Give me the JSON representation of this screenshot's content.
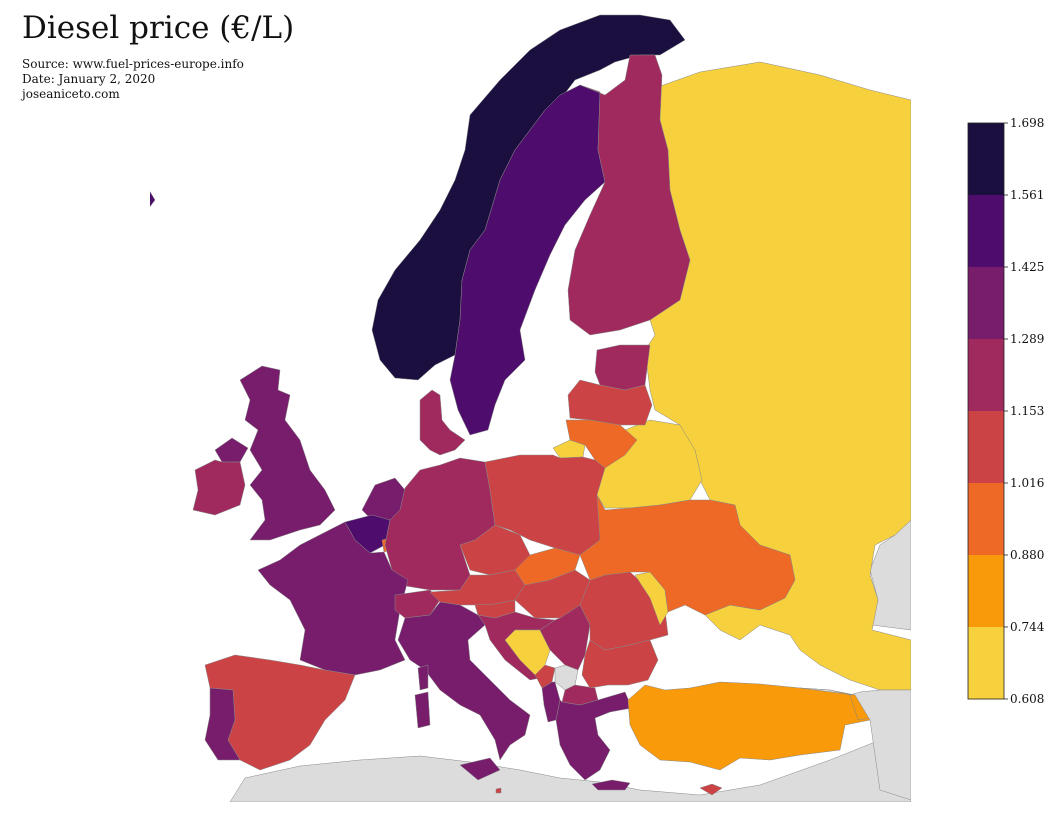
{
  "header": {
    "title": "Diesel price (€/L)",
    "source": "Source: www.fuel-prices-europe.info",
    "date": "Date: January 2, 2020",
    "credit": "joseaniceto.com"
  },
  "legend": {
    "ticks": [
      "1.698",
      "1.561",
      "1.425",
      "1.289",
      "1.153",
      "1.016",
      "0.880",
      "0.744",
      "0.608"
    ],
    "bins": [
      {
        "range": "1.561-1.698",
        "color": "#1b0f3f"
      },
      {
        "range": "1.425-1.561",
        "color": "#4e0d6c"
      },
      {
        "range": "1.289-1.425",
        "color": "#771d6c"
      },
      {
        "range": "1.153-1.289",
        "color": "#a02a5e"
      },
      {
        "range": "1.016-1.153",
        "color": "#cc4346"
      },
      {
        "range": "0.880-1.016",
        "color": "#ed6925"
      },
      {
        "range": "0.744-0.880",
        "color": "#f89a0a"
      },
      {
        "range": "0.608-0.744",
        "color": "#f7d13d"
      }
    ],
    "no_data_color": "#dcdcdc"
  },
  "map": {
    "regions": [
      {
        "name": "Iceland",
        "bin": 1
      },
      {
        "name": "Norway",
        "bin": 0
      },
      {
        "name": "Sweden",
        "bin": 1
      },
      {
        "name": "Finland",
        "bin": 3
      },
      {
        "name": "Russia",
        "bin": 7
      },
      {
        "name": "Estonia",
        "bin": 3
      },
      {
        "name": "Latvia",
        "bin": 4
      },
      {
        "name": "Lithuania",
        "bin": 5
      },
      {
        "name": "Belarus",
        "bin": 7
      },
      {
        "name": "United Kingdom",
        "bin": 2
      },
      {
        "name": "Ireland",
        "bin": 3
      },
      {
        "name": "Denmark",
        "bin": 3
      },
      {
        "name": "Netherlands",
        "bin": 2
      },
      {
        "name": "Belgium",
        "bin": 1
      },
      {
        "name": "Luxembourg",
        "bin": 5
      },
      {
        "name": "Germany",
        "bin": 3
      },
      {
        "name": "Poland",
        "bin": 4
      },
      {
        "name": "Ukraine",
        "bin": 5
      },
      {
        "name": "Moldova",
        "bin": 7
      },
      {
        "name": "France",
        "bin": 2
      },
      {
        "name": "Switzerland",
        "bin": 3
      },
      {
        "name": "Austria",
        "bin": 4
      },
      {
        "name": "Czechia",
        "bin": 4
      },
      {
        "name": "Slovakia",
        "bin": 5
      },
      {
        "name": "Hungary",
        "bin": 4
      },
      {
        "name": "Slovenia",
        "bin": 4
      },
      {
        "name": "Croatia",
        "bin": 3
      },
      {
        "name": "Bosnia and Herzegovina",
        "bin": 7
      },
      {
        "name": "Serbia",
        "bin": 3
      },
      {
        "name": "Montenegro",
        "bin": 4
      },
      {
        "name": "Kosovo",
        "bin": null
      },
      {
        "name": "North Macedonia",
        "bin": 3
      },
      {
        "name": "Albania",
        "bin": 2
      },
      {
        "name": "Romania",
        "bin": 4
      },
      {
        "name": "Bulgaria",
        "bin": 4
      },
      {
        "name": "Greece",
        "bin": 2
      },
      {
        "name": "Turkey",
        "bin": 6
      },
      {
        "name": "Cyprus",
        "bin": 4
      },
      {
        "name": "Italy",
        "bin": 2
      },
      {
        "name": "Spain",
        "bin": 4
      },
      {
        "name": "Portugal",
        "bin": 2
      },
      {
        "name": "Malta",
        "bin": 4
      },
      {
        "name": "Georgia",
        "bin": null
      },
      {
        "name": "Armenia",
        "bin": 6
      },
      {
        "name": "Kazakhstan",
        "bin": null
      },
      {
        "name": "North Africa",
        "bin": null
      }
    ]
  }
}
